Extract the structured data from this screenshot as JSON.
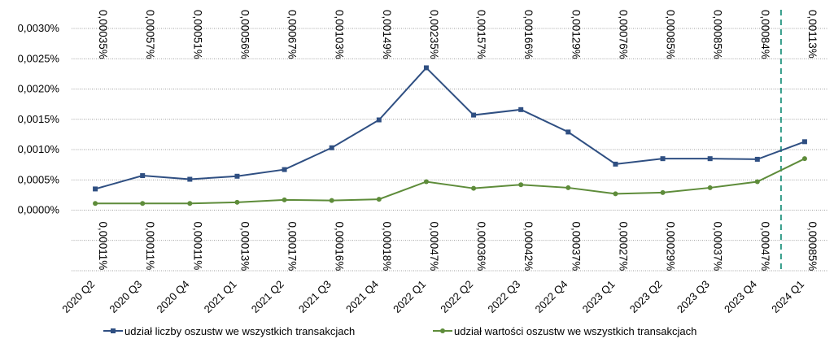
{
  "chart_data": {
    "type": "line",
    "categories": [
      "2020 Q2",
      "2020 Q3",
      "2020 Q4",
      "2021 Q1",
      "2021 Q2",
      "2021 Q3",
      "2021 Q4",
      "2022 Q1",
      "2022 Q2",
      "2022 Q3",
      "2022 Q4",
      "2023 Q1",
      "2023 Q2",
      "2023 Q3",
      "2023 Q4",
      "2024 Q1"
    ],
    "series": [
      {
        "name": "udział liczby oszustw we wszystkich transakcjach",
        "color": "#2f4f82",
        "marker": "square",
        "values": [
          0.00035,
          0.00057,
          0.00051,
          0.00056,
          0.00067,
          0.00103,
          0.00149,
          0.00235,
          0.00157,
          0.00166,
          0.00129,
          0.00076,
          0.00085,
          0.00085,
          0.00084,
          0.00113
        ],
        "labels": [
          "0,00035%",
          "0,00057%",
          "0,00051%",
          "0,00056%",
          "0,00067%",
          "0,00103%",
          "0,00149%",
          "0,00235%",
          "0,00157%",
          "0,00166%",
          "0,00129%",
          "0,00076%",
          "0,00085%",
          "0,00085%",
          "0,00084%",
          "0,00113%"
        ]
      },
      {
        "name": "udział wartości oszustw we wszystkich transakcjach",
        "color": "#5e8c3a",
        "marker": "circle",
        "values": [
          0.00011,
          0.00011,
          0.00011,
          0.00013,
          0.00017,
          0.00016,
          0.00018,
          0.00047,
          0.00036,
          0.00042,
          0.00037,
          0.00027,
          0.00029,
          0.00037,
          0.00047,
          0.00085
        ],
        "labels": [
          "0,00011%",
          "0,00011%",
          "0,00011%",
          "0,00013%",
          "0,00017%",
          "0,00016%",
          "0,00018%",
          "0,00047%",
          "0,00036%",
          "0,00042%",
          "0,00037%",
          "0,00027%",
          "0,00029%",
          "0,00037%",
          "0,00047%",
          "0,00085%"
        ]
      }
    ],
    "y_ticks": [
      "0,0000%",
      "0,0005%",
      "0,0010%",
      "0,0015%",
      "0,0020%",
      "0,0025%",
      "0,0030%"
    ],
    "ylim": [
      -0.0011,
      0.003
    ],
    "grid": true,
    "separator_line": {
      "between": [
        "2023 Q4",
        "2024 Q1"
      ],
      "style": "dashed",
      "color": "#2e9a86"
    },
    "legend_position": "bottom"
  }
}
